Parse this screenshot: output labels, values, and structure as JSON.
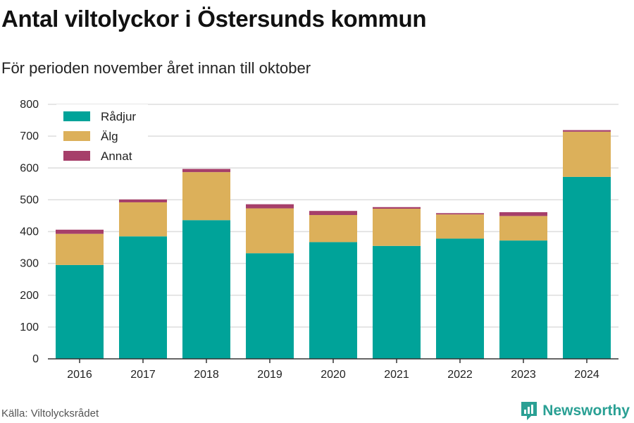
{
  "header": {
    "title": "Antal viltolyckor i Östersunds kommun",
    "subtitle": "För perioden november året innan till oktober"
  },
  "footer": {
    "source": "Källa: Viltolycksrådet",
    "brand": "Newsworthy"
  },
  "colors": {
    "rådjur": "#00a399",
    "älg": "#dcb05a",
    "annat": "#a63f6a",
    "grid": "#dddddd",
    "axis": "#333333",
    "brand": "#2aa094"
  },
  "icons": [
    "newsworthy-logo-icon"
  ],
  "chart_data": {
    "type": "bar",
    "stacked": true,
    "categories": [
      "2016",
      "2017",
      "2018",
      "2019",
      "2020",
      "2021",
      "2022",
      "2023",
      "2024"
    ],
    "series": [
      {
        "name": "Rådjur",
        "values": [
          295,
          385,
          436,
          332,
          367,
          355,
          378,
          372,
          572
        ]
      },
      {
        "name": "Älg",
        "values": [
          98,
          107,
          151,
          141,
          85,
          117,
          76,
          77,
          142
        ]
      },
      {
        "name": "Annat",
        "values": [
          13,
          9,
          10,
          13,
          13,
          5,
          4,
          12,
          5
        ]
      }
    ],
    "yticks": [
      "0",
      "100",
      "200",
      "300",
      "400",
      "500",
      "600",
      "700",
      "800"
    ],
    "ylim": [
      0,
      800
    ],
    "grid": true,
    "legend": "top-left",
    "title": "Antal viltolyckor i Östersunds kommun",
    "subtitle": "För perioden november året innan till oktober"
  }
}
